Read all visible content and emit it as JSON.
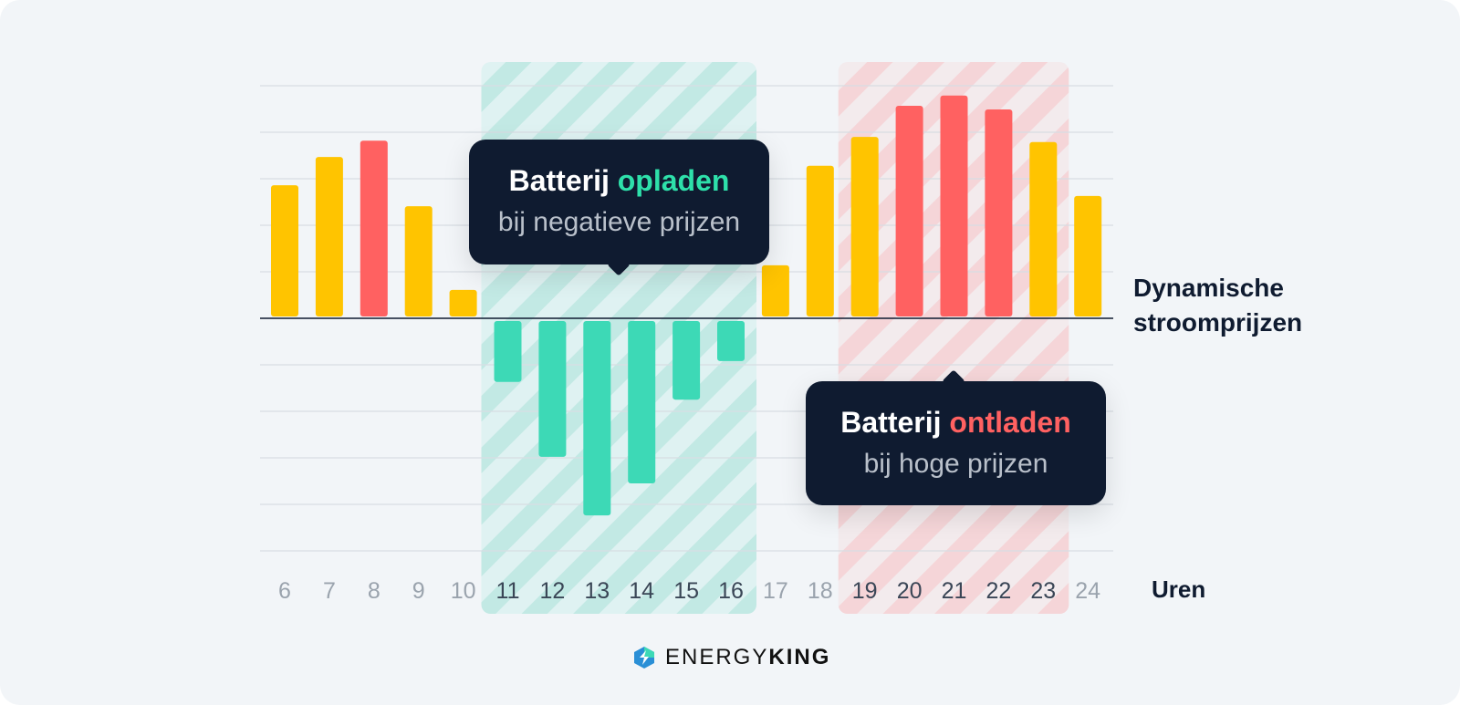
{
  "chart_data": {
    "type": "bar",
    "categories": [
      "6",
      "7",
      "8",
      "9",
      "10",
      "11",
      "12",
      "13",
      "14",
      "15",
      "16",
      "17",
      "18",
      "19",
      "20",
      "21",
      "22",
      "23",
      "24"
    ],
    "values": [
      2.82,
      3.43,
      3.78,
      2.37,
      0.57,
      -1.31,
      -2.92,
      -4.18,
      -3.49,
      -1.69,
      -0.86,
      1.1,
      3.24,
      3.86,
      4.53,
      4.75,
      4.45,
      3.75,
      2.59
    ],
    "bar_colors": [
      "yellow",
      "yellow",
      "red",
      "yellow",
      "yellow",
      "green",
      "green",
      "green",
      "green",
      "green",
      "green",
      "yellow",
      "yellow",
      "yellow",
      "red",
      "red",
      "red",
      "yellow",
      "yellow"
    ],
    "colors": {
      "yellow": "#FFC400",
      "red": "#FF6161",
      "green": "#3DD9B6"
    },
    "ylim": [
      -5,
      5
    ],
    "grid": true,
    "xlabel": "Uren",
    "ylabel": "Dynamische stroomprijzen",
    "highlight_regions": [
      {
        "from": "11",
        "to": "16",
        "color": "#3DD9B6"
      },
      {
        "from": "19",
        "to": "23",
        "color": "#FF6161"
      }
    ],
    "annotations": [
      {
        "bold": "Batterij",
        "accent": "opladen",
        "accent_color": "#2EE0AA",
        "sub": "bij negatieve prijzen"
      },
      {
        "bold": "Batterij",
        "accent": "ontladen",
        "accent_color": "#FF6161",
        "sub": "bij hoge prijzen"
      }
    ]
  },
  "y_label_lines": [
    "Dynamische",
    "stroomprijzen"
  ],
  "brand": {
    "name_light": "ENERGY",
    "name_bold": "KING",
    "icon": "energyking-logo-icon"
  }
}
